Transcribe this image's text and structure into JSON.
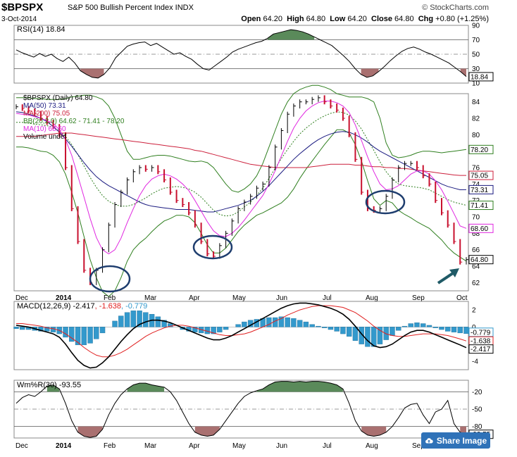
{
  "header": {
    "symbol": "$BPSPX",
    "name": "S&P 500 Bullish Percent Index INDX",
    "date": "3-Oct-2014",
    "brand": "© StockCharts.com",
    "open_label": "Open",
    "open": "64.20",
    "high_label": "High",
    "high": "64.80",
    "low_label": "Low",
    "low": "64.20",
    "close_label": "Close",
    "close": "64.80",
    "chg_label": "Chg",
    "chg": "+0.80 (+1.25%)"
  },
  "share_button": {
    "label": "Share Image",
    "icon": "cloud-upload-icon"
  },
  "colors": {
    "ma50": "#1a1a80",
    "ma200": "#cc1f3b",
    "bb": "#2f7f1f",
    "ma10": "#e026e0",
    "macd": "#000000",
    "signal": "#e02020",
    "hist": "#3399cc",
    "bull_fill": "#5a8a5a",
    "bear_fill": "#a97070",
    "annot": "#1e3d6e",
    "arrow": "#1f5a66"
  },
  "chart_data": [
    {
      "type": "line",
      "panel": "rsi",
      "legend": "RSI(14) 18.84",
      "y_ticks": [
        "90",
        "70",
        "50",
        "30",
        "10"
      ],
      "ylim": [
        10,
        90
      ],
      "last_label": "18.84",
      "series": [
        {
          "values": [
            56,
            52,
            49,
            46,
            51,
            47,
            50,
            44,
            40,
            46,
            38,
            27,
            22,
            18,
            17,
            22,
            31,
            45,
            53,
            61,
            64,
            66,
            67,
            62,
            65,
            60,
            55,
            50,
            52,
            47,
            43,
            36,
            30,
            28,
            34,
            40,
            46,
            53,
            57,
            60,
            63,
            66,
            68,
            72,
            78,
            80,
            82,
            84,
            83,
            81,
            78,
            74,
            70,
            66,
            62,
            55,
            48,
            40,
            30,
            22,
            18,
            20,
            26,
            33,
            41,
            48,
            54,
            58,
            60,
            57,
            53,
            50,
            46,
            42,
            38,
            32,
            26,
            19
          ]
        }
      ]
    },
    {
      "type": "line",
      "panel": "price",
      "legend": [
        "$BPSPX (Daily) 64.80",
        "MA(50) 73.31",
        "MA(200) 75.05",
        "BB(20,2.0) 64.62 - 71.41 - 78.20",
        "MA(10) 68.60",
        "Volume undef"
      ],
      "y_ticks": [
        "84",
        "82",
        "80",
        "78",
        "76",
        "74",
        "72",
        "70",
        "68",
        "66",
        "64",
        "62"
      ],
      "ylim": [
        61,
        85
      ],
      "x_ticks": [
        "Dec",
        "2014",
        "Feb",
        "Mar",
        "Apr",
        "May",
        "Jun",
        "Jul",
        "Aug",
        "Sep",
        "Oct"
      ],
      "right_labels": [
        "78.20",
        "75.05",
        "73.31",
        "71.41",
        "68.60",
        "64.80"
      ],
      "series": [
        {
          "values": [
            83.4,
            83.2,
            82.9,
            82.6,
            82.0,
            81.5,
            81.0,
            80.0,
            76.0,
            71.0,
            67.0,
            63.5,
            62.0,
            63.5,
            66.0,
            69.0,
            71.5,
            73.0,
            74.5,
            75.5,
            76.0,
            75.8,
            76.0,
            75.5,
            74.5,
            73.0,
            72.0,
            71.5,
            70.5,
            69.0,
            67.0,
            65.5,
            65.2,
            66.5,
            68.0,
            69.5,
            71.0,
            71.8,
            72.5,
            73.5,
            74.0,
            76.0,
            78.5,
            80.5,
            82.5,
            83.5,
            84.0,
            84.0,
            84.3,
            84.5,
            84.0,
            83.5,
            83.0,
            82.0,
            80.0,
            77.0,
            73.0,
            71.0,
            70.8,
            71.0,
            72.5,
            74.5,
            76.0,
            76.5,
            76.5,
            76.0,
            75.0,
            74.0,
            72.0,
            70.5,
            69.0,
            67.0,
            64.5,
            64.8
          ]
        },
        {
          "values": [
            82.8,
            82.7,
            82.5,
            82.3,
            82.0,
            81.6,
            81.0,
            80.3,
            79.5,
            78.6,
            77.6,
            76.6,
            75.7,
            74.9,
            74.3,
            73.8,
            73.4,
            73.0,
            72.6,
            72.2,
            71.8,
            71.5,
            71.3,
            71.2,
            71.1,
            71.0,
            70.9,
            70.9,
            70.9,
            70.8,
            70.7,
            70.6,
            70.6,
            70.8,
            71.0,
            71.2,
            71.4,
            71.7,
            72.0,
            72.5,
            73.1,
            73.8,
            74.6,
            75.4,
            76.2,
            77.0,
            77.7,
            78.3,
            78.9,
            79.4,
            79.8,
            80.1,
            80.3,
            80.4,
            80.3,
            80.0,
            79.6,
            79.1,
            78.5,
            78.0,
            77.6,
            77.2,
            76.8,
            76.4,
            76.0,
            75.6,
            75.2,
            74.8,
            74.4,
            74.0,
            73.7,
            73.5,
            73.3,
            73.31
          ]
        },
        {
          "values": [
            79.8,
            79.8,
            79.8,
            79.8,
            79.9,
            80.0,
            80.1,
            80.2,
            80.2,
            80.2,
            80.1,
            80.0,
            79.9,
            79.8,
            79.7,
            79.6,
            79.5,
            79.4,
            79.3,
            79.2,
            79.1,
            79.0,
            78.9,
            78.8,
            78.7,
            78.6,
            78.5,
            78.4,
            78.3,
            78.1,
            78.0,
            77.8,
            77.6,
            77.4,
            77.2,
            77.0,
            76.8,
            76.6,
            76.4,
            76.3,
            76.2,
            76.1,
            76.0,
            76.0,
            76.0,
            76.0,
            76.0,
            76.0,
            76.1,
            76.2,
            76.3,
            76.4,
            76.4,
            76.4,
            76.4,
            76.3,
            76.3,
            76.2,
            76.1,
            76.1,
            76.0,
            76.0,
            75.9,
            75.9,
            75.8,
            75.7,
            75.6,
            75.5,
            75.4,
            75.3,
            75.2,
            75.1,
            75.05,
            75.05
          ]
        },
        {
          "values": [
            84.5,
            84.5,
            84.5,
            84.4,
            84.4,
            84.3,
            84.3,
            84.3,
            84.4,
            84.6,
            84.7,
            84.8,
            84.8,
            84.6,
            84.3,
            83.5,
            82.0,
            80.0,
            78.0,
            77.0,
            77.0,
            77.2,
            77.4,
            77.5,
            77.5,
            77.4,
            77.2,
            77.0,
            76.8,
            76.7,
            76.8,
            76.6,
            76.0,
            75.0,
            74.0,
            73.2,
            73.0,
            73.4,
            74.0,
            75.0,
            76.5,
            78.5,
            80.5,
            82.5,
            84.0,
            85.0,
            85.5,
            85.8,
            86.0,
            86.0,
            85.8,
            85.5,
            85.0,
            84.8,
            84.6,
            84.6,
            84.6,
            84.4,
            84.0,
            82.0,
            79.0,
            77.5,
            77.2,
            77.3,
            77.5,
            77.8,
            78.0,
            78.0,
            77.9,
            77.8,
            77.9,
            78.0,
            78.1,
            78.2
          ]
        },
        {
          "values": [
            81.5,
            81.5,
            81.4,
            81.3,
            81.2,
            81.1,
            80.9,
            80.5,
            79.8,
            78.8,
            77.6,
            76.2,
            74.8,
            73.6,
            72.6,
            71.9,
            71.5,
            71.3,
            71.3,
            71.5,
            71.9,
            72.3,
            72.8,
            73.2,
            73.5,
            73.6,
            73.7,
            73.6,
            73.4,
            73.0,
            72.4,
            71.6,
            70.8,
            70.3,
            70.1,
            70.2,
            70.6,
            71.2,
            71.8,
            72.6,
            73.5,
            74.7,
            75.9,
            77.1,
            78.2,
            79.2,
            80.1,
            80.8,
            81.4,
            81.9,
            82.3,
            82.6,
            82.8,
            82.7,
            82.4,
            81.7,
            80.7,
            79.4,
            78.1,
            76.7,
            75.5,
            74.6,
            74.0,
            73.8,
            73.7,
            73.6,
            73.5,
            73.3,
            72.9,
            72.5,
            72.1,
            71.8,
            71.6,
            71.41
          ]
        },
        {
          "values": [
            78.5,
            78.5,
            78.4,
            78.2,
            78.0,
            77.9,
            77.5,
            76.7,
            75.2,
            73.0,
            70.5,
            67.6,
            64.8,
            62.6,
            60.9,
            60.3,
            61.0,
            62.6,
            64.6,
            66.0,
            66.8,
            67.4,
            68.2,
            68.9,
            69.5,
            69.8,
            70.2,
            70.2,
            70.0,
            69.3,
            68.0,
            66.6,
            65.6,
            65.6,
            66.2,
            67.2,
            68.2,
            69.0,
            69.6,
            70.2,
            70.5,
            70.9,
            71.3,
            71.7,
            72.4,
            73.4,
            74.7,
            75.8,
            76.8,
            77.8,
            78.8,
            79.7,
            80.6,
            80.6,
            80.2,
            78.8,
            76.8,
            74.4,
            72.2,
            71.4,
            72.0,
            71.7,
            70.8,
            70.3,
            69.9,
            69.4,
            69.0,
            68.6,
            67.9,
            67.2,
            66.3,
            65.6,
            65.1,
            64.62
          ]
        },
        {
          "values": [
            82.6,
            82.5,
            82.4,
            82.2,
            82.0,
            81.7,
            81.4,
            80.6,
            79.4,
            77.5,
            75.0,
            72.4,
            69.8,
            67.5,
            66.0,
            65.5,
            66.0,
            67.4,
            69.3,
            71.0,
            72.6,
            73.8,
            74.6,
            75.0,
            75.2,
            75.0,
            74.6,
            74.0,
            73.2,
            72.0,
            70.7,
            69.4,
            68.3,
            67.7,
            67.6,
            68.0,
            68.7,
            69.6,
            70.6,
            71.6,
            72.6,
            74.0,
            75.6,
            77.4,
            79.2,
            80.8,
            82.0,
            82.9,
            83.5,
            83.9,
            84.1,
            84.1,
            83.9,
            83.5,
            82.7,
            81.2,
            79.3,
            77.3,
            75.5,
            74.0,
            73.3,
            73.4,
            73.8,
            74.5,
            75.2,
            75.6,
            75.6,
            75.2,
            74.4,
            73.3,
            71.9,
            70.4,
            68.9,
            68.6
          ]
        }
      ]
    },
    {
      "type": "line",
      "panel": "macd",
      "legend": "MACD(12,26,9) -2.417, -1.638, -0.779",
      "y_ticks": [
        "2",
        "0",
        "-2",
        "-4"
      ],
      "ylim": [
        -5,
        3
      ],
      "right_labels": [
        "-0.779",
        "-1.638",
        "-2.417"
      ],
      "series": [
        {
          "values": [
            0.2,
            0.1,
            0.0,
            -0.2,
            -0.4,
            -0.6,
            -0.8,
            -1.2,
            -2.0,
            -3.0,
            -3.9,
            -4.5,
            -4.8,
            -4.7,
            -4.2,
            -3.5,
            -2.6,
            -1.7,
            -0.9,
            -0.2,
            0.3,
            0.6,
            0.8,
            0.8,
            0.7,
            0.5,
            0.2,
            -0.1,
            -0.4,
            -0.7,
            -1.0,
            -1.3,
            -1.5,
            -1.5,
            -1.3,
            -1.0,
            -0.6,
            -0.2,
            0.2,
            0.6,
            1.0,
            1.4,
            1.8,
            2.2,
            2.5,
            2.7,
            2.8,
            2.8,
            2.7,
            2.6,
            2.4,
            2.2,
            1.9,
            1.5,
            0.9,
            0.1,
            -0.8,
            -1.6,
            -2.2,
            -2.4,
            -2.3,
            -2.0,
            -1.5,
            -1.0,
            -0.6,
            -0.4,
            -0.4,
            -0.6,
            -0.9,
            -1.2,
            -1.5,
            -1.8,
            -2.1,
            -2.417
          ]
        },
        {
          "values": [
            0.4,
            0.4,
            0.3,
            0.2,
            0.1,
            -0.1,
            -0.2,
            -0.4,
            -0.8,
            -1.3,
            -1.8,
            -2.4,
            -2.9,
            -3.3,
            -3.5,
            -3.5,
            -3.3,
            -3.0,
            -2.6,
            -2.1,
            -1.6,
            -1.1,
            -0.7,
            -0.4,
            -0.1,
            0.1,
            0.2,
            0.2,
            0.1,
            -0.1,
            -0.3,
            -0.5,
            -0.7,
            -0.9,
            -1.0,
            -1.0,
            -0.9,
            -0.8,
            -0.6,
            -0.3,
            0.0,
            0.3,
            0.7,
            1.0,
            1.4,
            1.7,
            2.0,
            2.2,
            2.4,
            2.5,
            2.5,
            2.5,
            2.4,
            2.3,
            2.0,
            1.7,
            1.2,
            0.7,
            0.1,
            -0.4,
            -0.8,
            -1.0,
            -1.1,
            -1.1,
            -1.0,
            -0.9,
            -0.8,
            -0.8,
            -0.8,
            -0.9,
            -1.0,
            -1.2,
            -1.4,
            -1.638
          ]
        },
        {
          "values": [
            -0.2,
            -0.3,
            -0.3,
            -0.4,
            -0.5,
            -0.5,
            -0.6,
            -0.8,
            -1.2,
            -1.7,
            -2.1,
            -2.1,
            -1.9,
            -1.4,
            -0.7,
            0.0,
            0.7,
            1.3,
            1.7,
            1.9,
            1.9,
            1.7,
            1.5,
            1.2,
            0.8,
            0.4,
            0.0,
            -0.3,
            -0.5,
            -0.6,
            -0.7,
            -0.8,
            -0.8,
            -0.6,
            -0.3,
            0.0,
            0.3,
            0.6,
            0.8,
            0.9,
            1.0,
            1.1,
            1.1,
            1.2,
            1.1,
            1.0,
            0.8,
            0.6,
            0.3,
            0.1,
            -0.1,
            -0.3,
            -0.5,
            -0.8,
            -1.1,
            -1.6,
            -2.0,
            -2.3,
            -2.3,
            -2.0,
            -1.5,
            -1.0,
            -0.4,
            0.1,
            0.4,
            0.5,
            0.4,
            0.2,
            -0.1,
            -0.3,
            -0.5,
            -0.6,
            -0.7,
            -0.779
          ]
        }
      ]
    },
    {
      "type": "line",
      "panel": "williams",
      "legend": "Wm%R(30) -93.55",
      "y_ticks": [
        "-20",
        "-50",
        "-80"
      ],
      "ylim": [
        -100,
        0
      ],
      "last_label": "-93.55",
      "series": [
        {
          "values": [
            -40,
            -30,
            -25,
            -28,
            -20,
            -10,
            -8,
            -15,
            -40,
            -70,
            -90,
            -97,
            -99,
            -97,
            -85,
            -60,
            -40,
            -25,
            -15,
            -8,
            -5,
            -5,
            -8,
            -10,
            -12,
            -20,
            -35,
            -55,
            -75,
            -90,
            -95,
            -97,
            -95,
            -85,
            -70,
            -55,
            -40,
            -28,
            -22,
            -18,
            -15,
            -8,
            -3,
            -2,
            -2,
            -3,
            -2,
            -3,
            -2,
            -2,
            -3,
            -5,
            -8,
            -15,
            -40,
            -70,
            -88,
            -95,
            -97,
            -95,
            -90,
            -80,
            -65,
            -48,
            -42,
            -40,
            -60,
            -75,
            -55,
            -50,
            -35,
            -75,
            -90,
            -93.55
          ]
        }
      ]
    }
  ]
}
